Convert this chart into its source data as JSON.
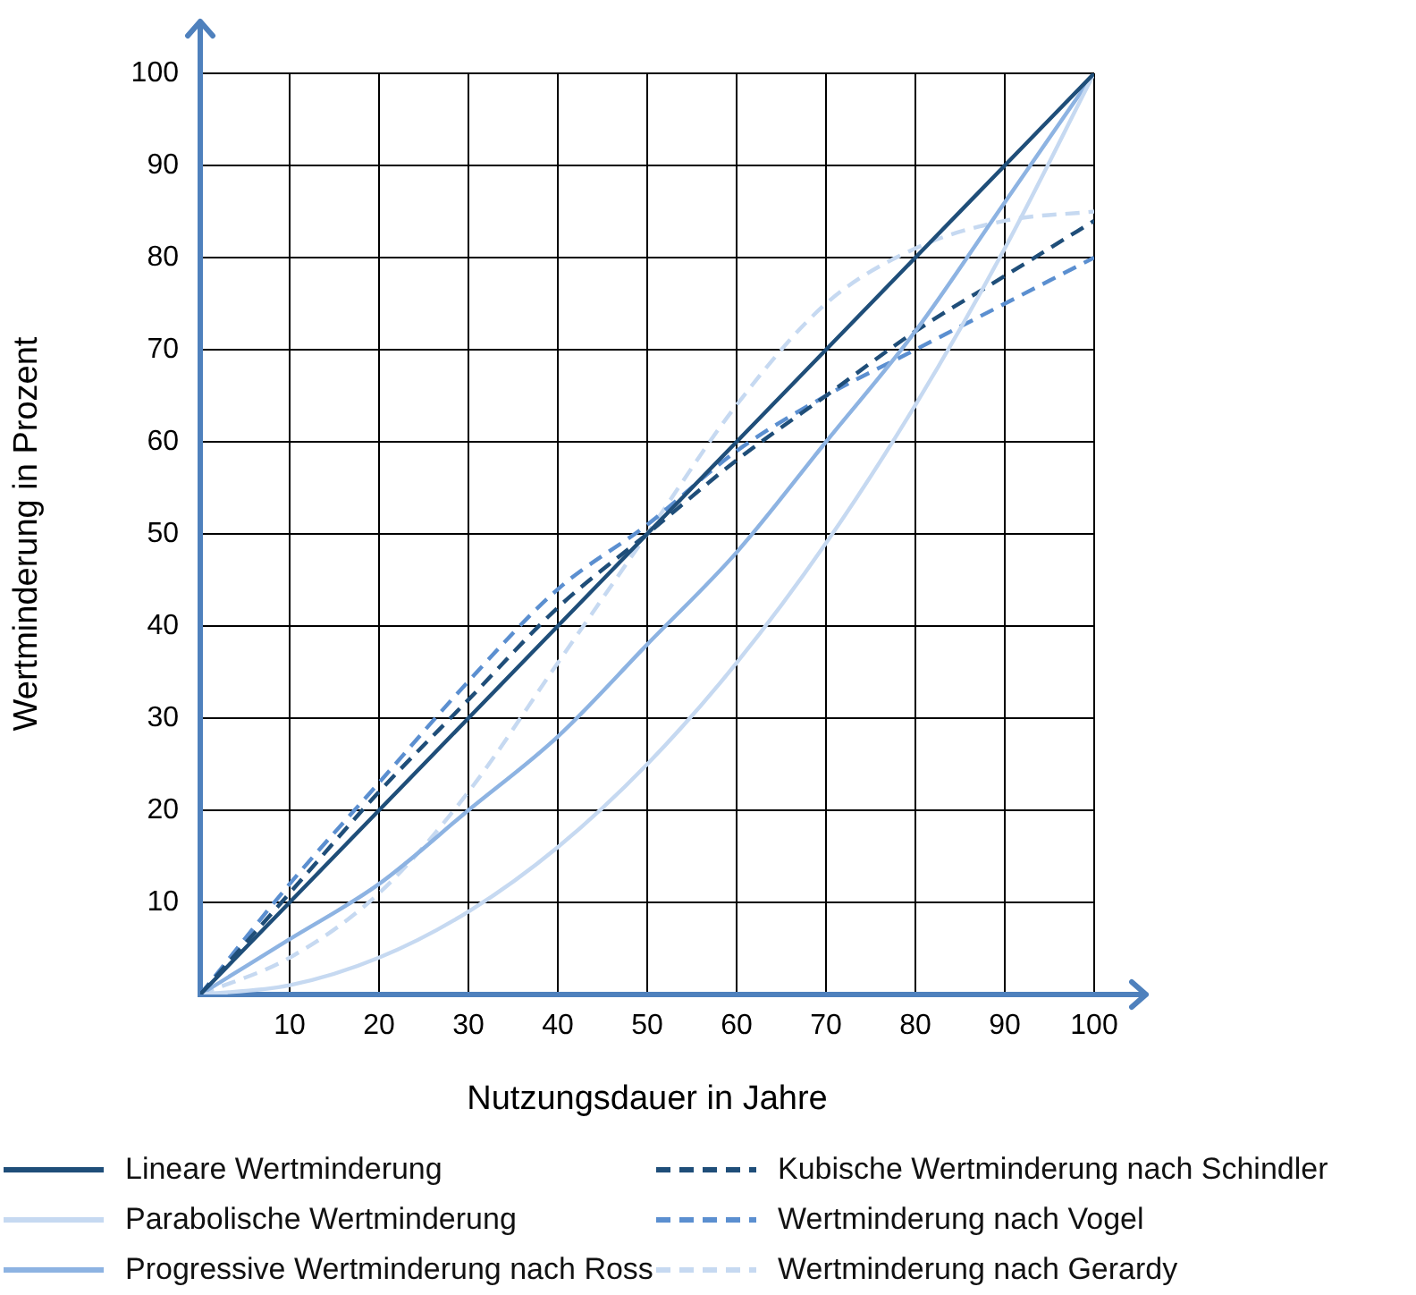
{
  "chart_data": {
    "type": "line",
    "xlabel": "Nutzungsdauer in Jahre",
    "ylabel": "Wertminderung in Prozent",
    "x": [
      0,
      10,
      20,
      30,
      40,
      50,
      60,
      70,
      80,
      90,
      100
    ],
    "xlim": [
      0,
      100
    ],
    "ylim": [
      0,
      100
    ],
    "xticks": [
      {
        "value": 0,
        "label": null
      },
      10,
      20,
      30,
      40,
      50,
      60,
      70,
      80,
      90,
      100
    ],
    "yticks": [
      {
        "value": 0,
        "label": null
      },
      10,
      20,
      30,
      40,
      50,
      60,
      70,
      80,
      90,
      100
    ],
    "grid": true,
    "legend": "bottom",
    "marker": "none",
    "series": [
      {
        "name": "Lineare Wertminderung",
        "color": "#1f4e79",
        "line_style": "solid",
        "values": [
          0,
          10,
          20,
          30,
          40,
          50,
          60,
          70,
          80,
          90,
          100
        ]
      },
      {
        "name": "Parabolische Wertminderung",
        "color": "#c6d9f1",
        "line_style": "solid",
        "values": [
          0,
          1,
          4,
          9,
          16,
          25,
          36,
          49,
          64,
          81,
          100
        ]
      },
      {
        "name": "Progressive Wertminderung nach Ross",
        "color": "#8db3e2",
        "line_style": "solid",
        "values": [
          0,
          6,
          12,
          20,
          28,
          38,
          48,
          60,
          72,
          86,
          100
        ]
      },
      {
        "name": "Kubische Wertminderung nach Schindler",
        "color": "#1f4e79",
        "line_style": "dashed",
        "values": [
          0,
          11,
          22,
          32,
          42,
          50,
          58,
          65,
          72,
          78,
          84
        ]
      },
      {
        "name": "Wertminderung nach Vogel",
        "color": "#5b8fd0",
        "line_style": "dashed",
        "values": [
          0,
          12,
          23,
          34,
          44,
          51,
          59,
          65,
          70,
          75,
          80
        ]
      },
      {
        "name": "Wertminderung nach Gerardy",
        "color": "#c6d9f1",
        "line_style": "dashed",
        "values": [
          0,
          4,
          11,
          22,
          36,
          50,
          64,
          75,
          81,
          84,
          85
        ]
      }
    ]
  }
}
